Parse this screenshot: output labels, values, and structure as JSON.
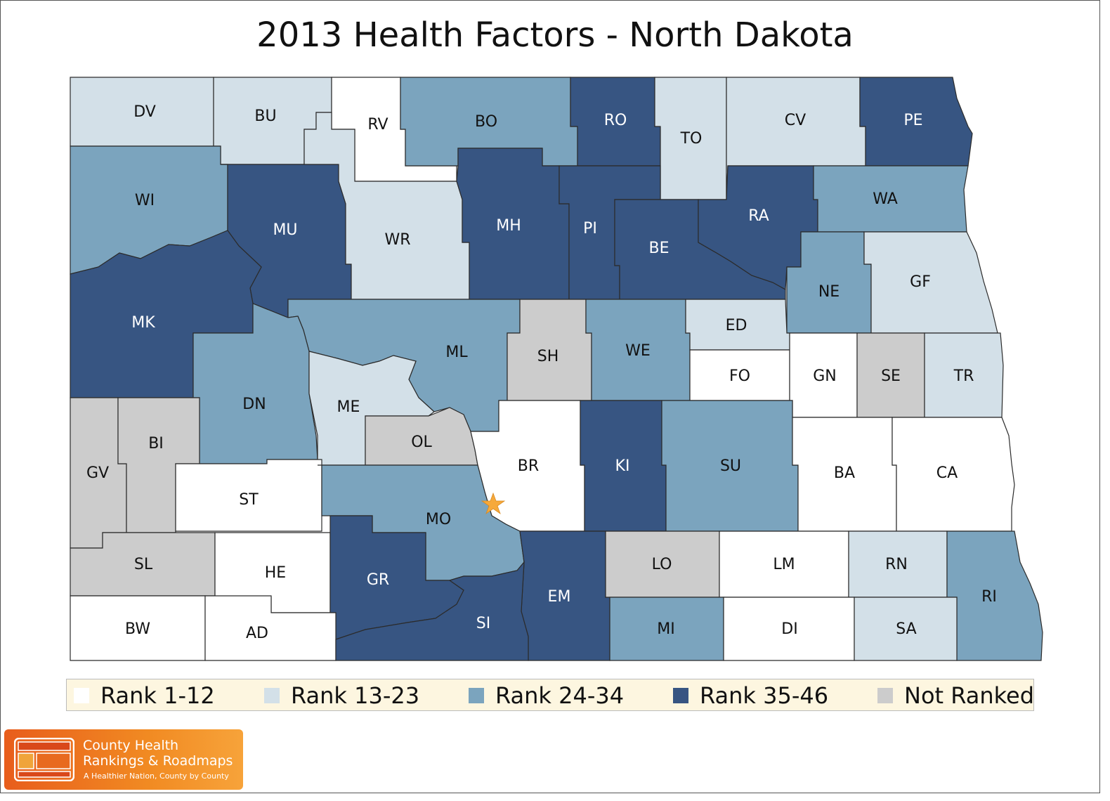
{
  "title": "2013 Health Factors - North Dakota",
  "colors": {
    "rank_1_12": "#ffffff",
    "rank_13_23": "#d3e0e8",
    "rank_24_34": "#7ba4be",
    "rank_35_46": "#375582",
    "not_ranked": "#cccccc",
    "star": "#f6a93b"
  },
  "legend": [
    {
      "label": "Rank 1-12",
      "color": "#ffffff"
    },
    {
      "label": "Rank 13-23",
      "color": "#d3e0e8"
    },
    {
      "label": "Rank 24-34",
      "color": "#7ba4be"
    },
    {
      "label": "Rank 35-46",
      "color": "#375582"
    },
    {
      "label": "Not Ranked",
      "color": "#cccccc"
    }
  ],
  "counties": [
    {
      "abbr": "DV",
      "category": "Rank 13-23"
    },
    {
      "abbr": "BU",
      "category": "Rank 13-23"
    },
    {
      "abbr": "RV",
      "category": "Rank 1-12"
    },
    {
      "abbr": "BO",
      "category": "Rank 24-34"
    },
    {
      "abbr": "RO",
      "category": "Rank 35-46"
    },
    {
      "abbr": "TO",
      "category": "Rank 13-23"
    },
    {
      "abbr": "CV",
      "category": "Rank 13-23"
    },
    {
      "abbr": "PE",
      "category": "Rank 35-46"
    },
    {
      "abbr": "WI",
      "category": "Rank 24-34"
    },
    {
      "abbr": "MU",
      "category": "Rank 35-46"
    },
    {
      "abbr": "WR",
      "category": "Rank 13-23"
    },
    {
      "abbr": "MH",
      "category": "Rank 35-46"
    },
    {
      "abbr": "PI",
      "category": "Rank 35-46"
    },
    {
      "abbr": "BE",
      "category": "Rank 35-46"
    },
    {
      "abbr": "RA",
      "category": "Rank 35-46"
    },
    {
      "abbr": "WA",
      "category": "Rank 24-34"
    },
    {
      "abbr": "NE",
      "category": "Rank 24-34"
    },
    {
      "abbr": "GF",
      "category": "Rank 13-23"
    },
    {
      "abbr": "MK",
      "category": "Rank 35-46"
    },
    {
      "abbr": "ML",
      "category": "Rank 24-34"
    },
    {
      "abbr": "SH",
      "category": "Not Ranked"
    },
    {
      "abbr": "WE",
      "category": "Rank 24-34"
    },
    {
      "abbr": "ED",
      "category": "Rank 13-23"
    },
    {
      "abbr": "FO",
      "category": "Rank 1-12"
    },
    {
      "abbr": "GN",
      "category": "Rank 1-12"
    },
    {
      "abbr": "SE",
      "category": "Not Ranked"
    },
    {
      "abbr": "TR",
      "category": "Rank 13-23"
    },
    {
      "abbr": "DN",
      "category": "Rank 24-34"
    },
    {
      "abbr": "ME",
      "category": "Rank 13-23"
    },
    {
      "abbr": "OL",
      "category": "Not Ranked"
    },
    {
      "abbr": "BR",
      "category": "Rank 1-12"
    },
    {
      "abbr": "KI",
      "category": "Rank 35-46"
    },
    {
      "abbr": "SU",
      "category": "Rank 24-34"
    },
    {
      "abbr": "BA",
      "category": "Rank 1-12"
    },
    {
      "abbr": "CA",
      "category": "Rank 1-12"
    },
    {
      "abbr": "GV",
      "category": "Not Ranked"
    },
    {
      "abbr": "BI",
      "category": "Not Ranked"
    },
    {
      "abbr": "ST",
      "category": "Rank 1-12"
    },
    {
      "abbr": "MO",
      "category": "Rank 24-34"
    },
    {
      "abbr": "SL",
      "category": "Not Ranked"
    },
    {
      "abbr": "HE",
      "category": "Rank 1-12"
    },
    {
      "abbr": "GR",
      "category": "Rank 35-46"
    },
    {
      "abbr": "EM",
      "category": "Rank 35-46"
    },
    {
      "abbr": "LO",
      "category": "Not Ranked"
    },
    {
      "abbr": "LM",
      "category": "Rank 1-12"
    },
    {
      "abbr": "RN",
      "category": "Rank 13-23"
    },
    {
      "abbr": "RI",
      "category": "Rank 24-34"
    },
    {
      "abbr": "BW",
      "category": "Rank 1-12"
    },
    {
      "abbr": "AD",
      "category": "Rank 1-12"
    },
    {
      "abbr": "SI",
      "category": "Rank 35-46"
    },
    {
      "abbr": "MI",
      "category": "Rank 24-34"
    },
    {
      "abbr": "DI",
      "category": "Rank 1-12"
    },
    {
      "abbr": "SA",
      "category": "Rank 13-23"
    }
  ],
  "capital_marker": "star",
  "logo": {
    "line1": "County Health",
    "line2": "Rankings & Roadmaps",
    "tagline": "A Healthier Nation, County by County"
  }
}
